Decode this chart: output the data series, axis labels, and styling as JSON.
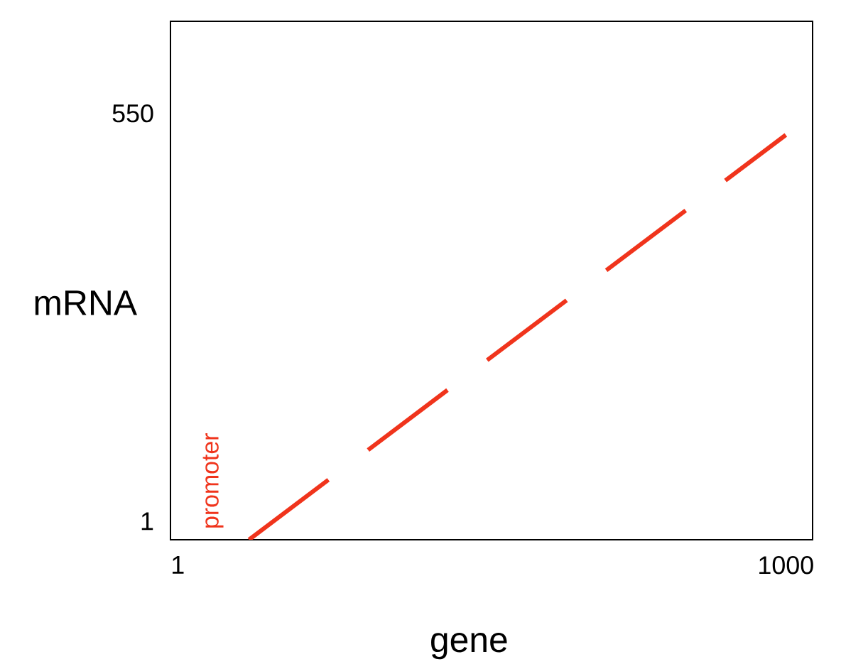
{
  "chart_data": {
    "type": "line",
    "xlabel": "gene",
    "ylabel": "mRNA",
    "xlim": [
      -11,
      1044
    ],
    "ylim": [
      -24,
      674
    ],
    "xticks": [
      1,
      1000
    ],
    "yticks": [
      1,
      550
    ],
    "series": [
      {
        "color": "#f0341c",
        "x": [
          118,
          1000
        ],
        "values": [
          -24,
          521
        ]
      }
    ],
    "line_style": "dashed",
    "grid": false,
    "legend": false,
    "annotations": [
      "promoter"
    ]
  }
}
